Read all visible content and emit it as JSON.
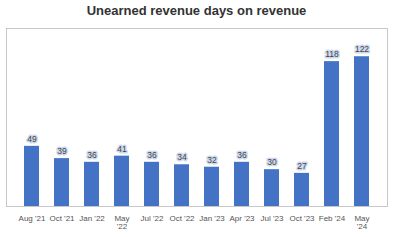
{
  "chart_data": {
    "type": "bar",
    "title": "Unearned revenue days on revenue",
    "categories": [
      "Aug '21",
      "Oct '21",
      "Jan '22",
      "May\n'22",
      "Jul '22",
      "Oct '22",
      "Jan '23",
      "Apr '23",
      "Jul '23",
      "Oct '23",
      "Feb '24",
      "May\n'24"
    ],
    "values": [
      49,
      39,
      36,
      41,
      36,
      34,
      32,
      36,
      30,
      27,
      118,
      122
    ],
    "color": "#4472c4",
    "ylim": [
      0,
      145
    ],
    "data_labels": true,
    "tick_labels": "x",
    "grid": false
  }
}
